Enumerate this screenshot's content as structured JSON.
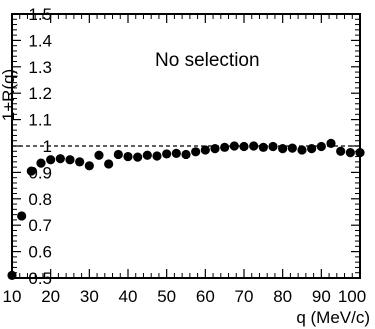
{
  "chart_data": {
    "type": "scatter",
    "title": "",
    "xlabel": "q (MeV/c)",
    "ylabel": "1+R(q)",
    "xlim": [
      10,
      100
    ],
    "ylim": [
      0.5,
      1.5
    ],
    "x_ticks": [
      10,
      20,
      30,
      40,
      50,
      60,
      70,
      80,
      90,
      100
    ],
    "x_tick_labels": [
      "10",
      "20",
      "30",
      "40",
      "50",
      "60",
      "70",
      "80",
      "90",
      "100"
    ],
    "y_ticks": [
      0.5,
      0.6,
      0.7,
      0.8,
      0.9,
      1.0,
      1.1,
      1.2,
      1.3,
      1.4,
      1.5
    ],
    "y_tick_labels": [
      "0.5",
      "0.6",
      "0.7",
      "0.8",
      "0.9",
      "1",
      "1.1",
      "1.2",
      "1.3",
      "1.4",
      "1.5"
    ],
    "annotation": "No selection",
    "reference_line": {
      "y": 1.0,
      "style": "dashed"
    },
    "grid": false,
    "x": [
      10,
      12.5,
      15,
      17.5,
      20,
      22.5,
      25,
      27.5,
      30,
      32.5,
      35,
      37.5,
      40,
      42.5,
      45,
      47.5,
      50,
      52.5,
      55,
      57.5,
      60,
      62.5,
      65,
      67.5,
      70,
      72.5,
      75,
      77.5,
      80,
      82.5,
      85,
      87.5,
      90,
      92.5,
      95,
      97.5,
      100
    ],
    "y": [
      0.51,
      0.735,
      0.905,
      0.935,
      0.948,
      0.952,
      0.948,
      0.94,
      0.925,
      0.965,
      0.932,
      0.968,
      0.96,
      0.958,
      0.965,
      0.962,
      0.97,
      0.972,
      0.968,
      0.978,
      0.985,
      0.99,
      0.995,
      1.0,
      0.998,
      1.0,
      0.995,
      0.998,
      0.99,
      0.992,
      0.985,
      0.99,
      0.998,
      1.01,
      0.98,
      0.975,
      0.975
    ]
  }
}
